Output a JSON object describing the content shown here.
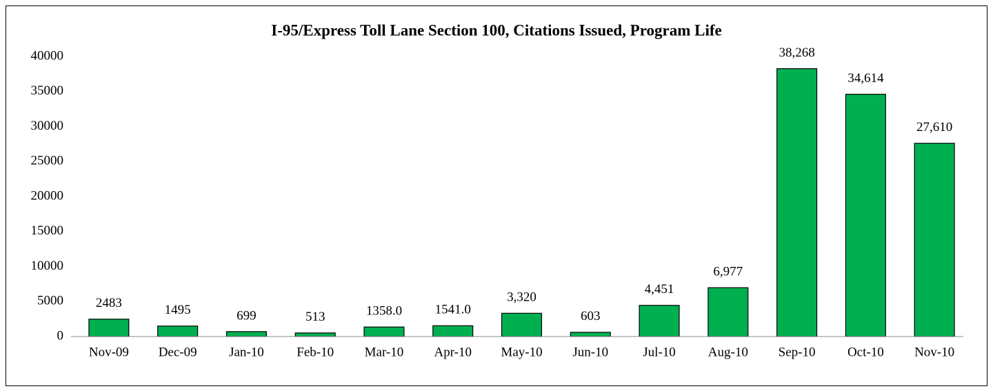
{
  "chart_data": {
    "type": "bar",
    "title": "I-95/Express Toll Lane Section 100, Citations Issued, Program Life",
    "categories": [
      "Nov-09",
      "Dec-09",
      "Jan-10",
      "Feb-10",
      "Mar-10",
      "Apr-10",
      "May-10",
      "Jun-10",
      "Jul-10",
      "Aug-10",
      "Sep-10",
      "Oct-10",
      "Nov-10"
    ],
    "values": [
      2483,
      1495,
      699,
      513,
      1358,
      1541,
      3320,
      603,
      4451,
      6977,
      38268,
      34614,
      27610
    ],
    "value_labels": [
      "2483",
      "1495",
      "699",
      "513",
      "1358.0",
      "1541.0",
      "3,320",
      "603",
      "4,451",
      "6,977",
      "38,268",
      "34,614",
      "27,610"
    ],
    "color": "#00b050",
    "ylim": [
      0,
      40000
    ],
    "yticks": [
      0,
      5000,
      10000,
      15000,
      20000,
      25000,
      30000,
      35000,
      40000
    ],
    "grid": false
  }
}
